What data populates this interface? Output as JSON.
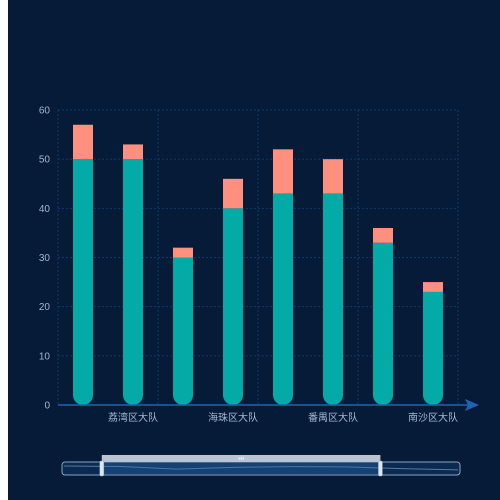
{
  "chart_data": {
    "type": "bar",
    "stacked": true,
    "categories": [
      "",
      "荔湾区大队",
      "",
      "海珠区大队",
      "",
      "番禺区大队",
      "",
      "南沙区大队"
    ],
    "series": [
      {
        "values": [
          50,
          50,
          30,
          40,
          43,
          43,
          33,
          23
        ],
        "color": "#04aaa6"
      },
      {
        "values": [
          7,
          3,
          2,
          6,
          9,
          7,
          3,
          2
        ],
        "color": "#ff8f7f"
      }
    ],
    "ylim": [
      0,
      60
    ],
    "yticks": [
      "0",
      "10",
      "20",
      "30",
      "40",
      "50",
      "60"
    ],
    "grid": true,
    "axis_arrow": true,
    "datazoom": {
      "start": 10,
      "end": 80
    }
  },
  "colors": {
    "background": "#061b37",
    "grid": "#0e3a6a",
    "axis": "#1f64b4",
    "tick_label": "#9fb9d8"
  }
}
